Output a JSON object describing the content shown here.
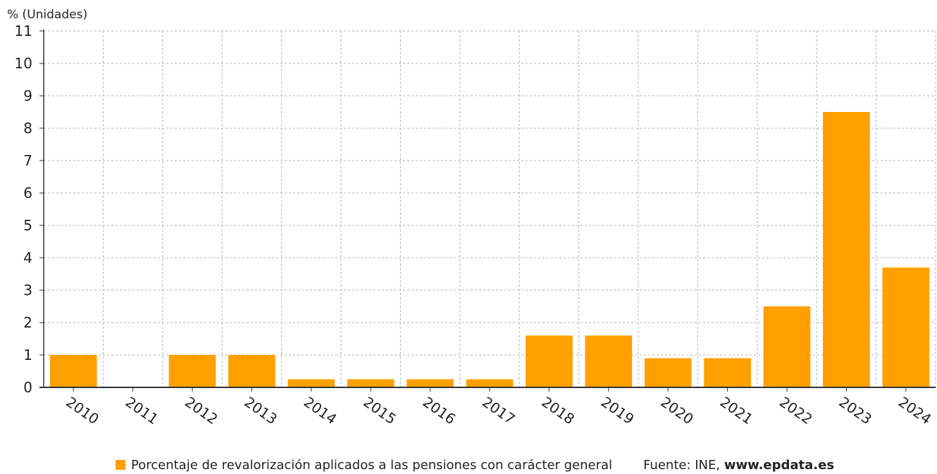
{
  "chart_data": {
    "type": "bar",
    "unit_label": "% (Unidades)",
    "categories": [
      "2010",
      "2011",
      "2012",
      "2013",
      "2014",
      "2015",
      "2016",
      "2017",
      "2018",
      "2019",
      "2020",
      "2021",
      "2022",
      "2023",
      "2024"
    ],
    "series": [
      {
        "name": "Porcentaje de revalorización aplicados a las pensiones con carácter general",
        "values": [
          1,
          0,
          1,
          1,
          0.25,
          0.25,
          0.25,
          0.25,
          1.6,
          1.6,
          0.9,
          0.9,
          2.5,
          8.5,
          3.7
        ],
        "color": "#ffa000"
      }
    ],
    "ylim": [
      0,
      11
    ],
    "yticks": [
      0,
      1,
      2,
      3,
      4,
      5,
      6,
      7,
      8,
      9,
      10,
      11
    ],
    "grid": true,
    "legend_position": "bottom"
  },
  "source": {
    "prefix": "Fuente: INE, ",
    "link": "www.epdata.es"
  }
}
